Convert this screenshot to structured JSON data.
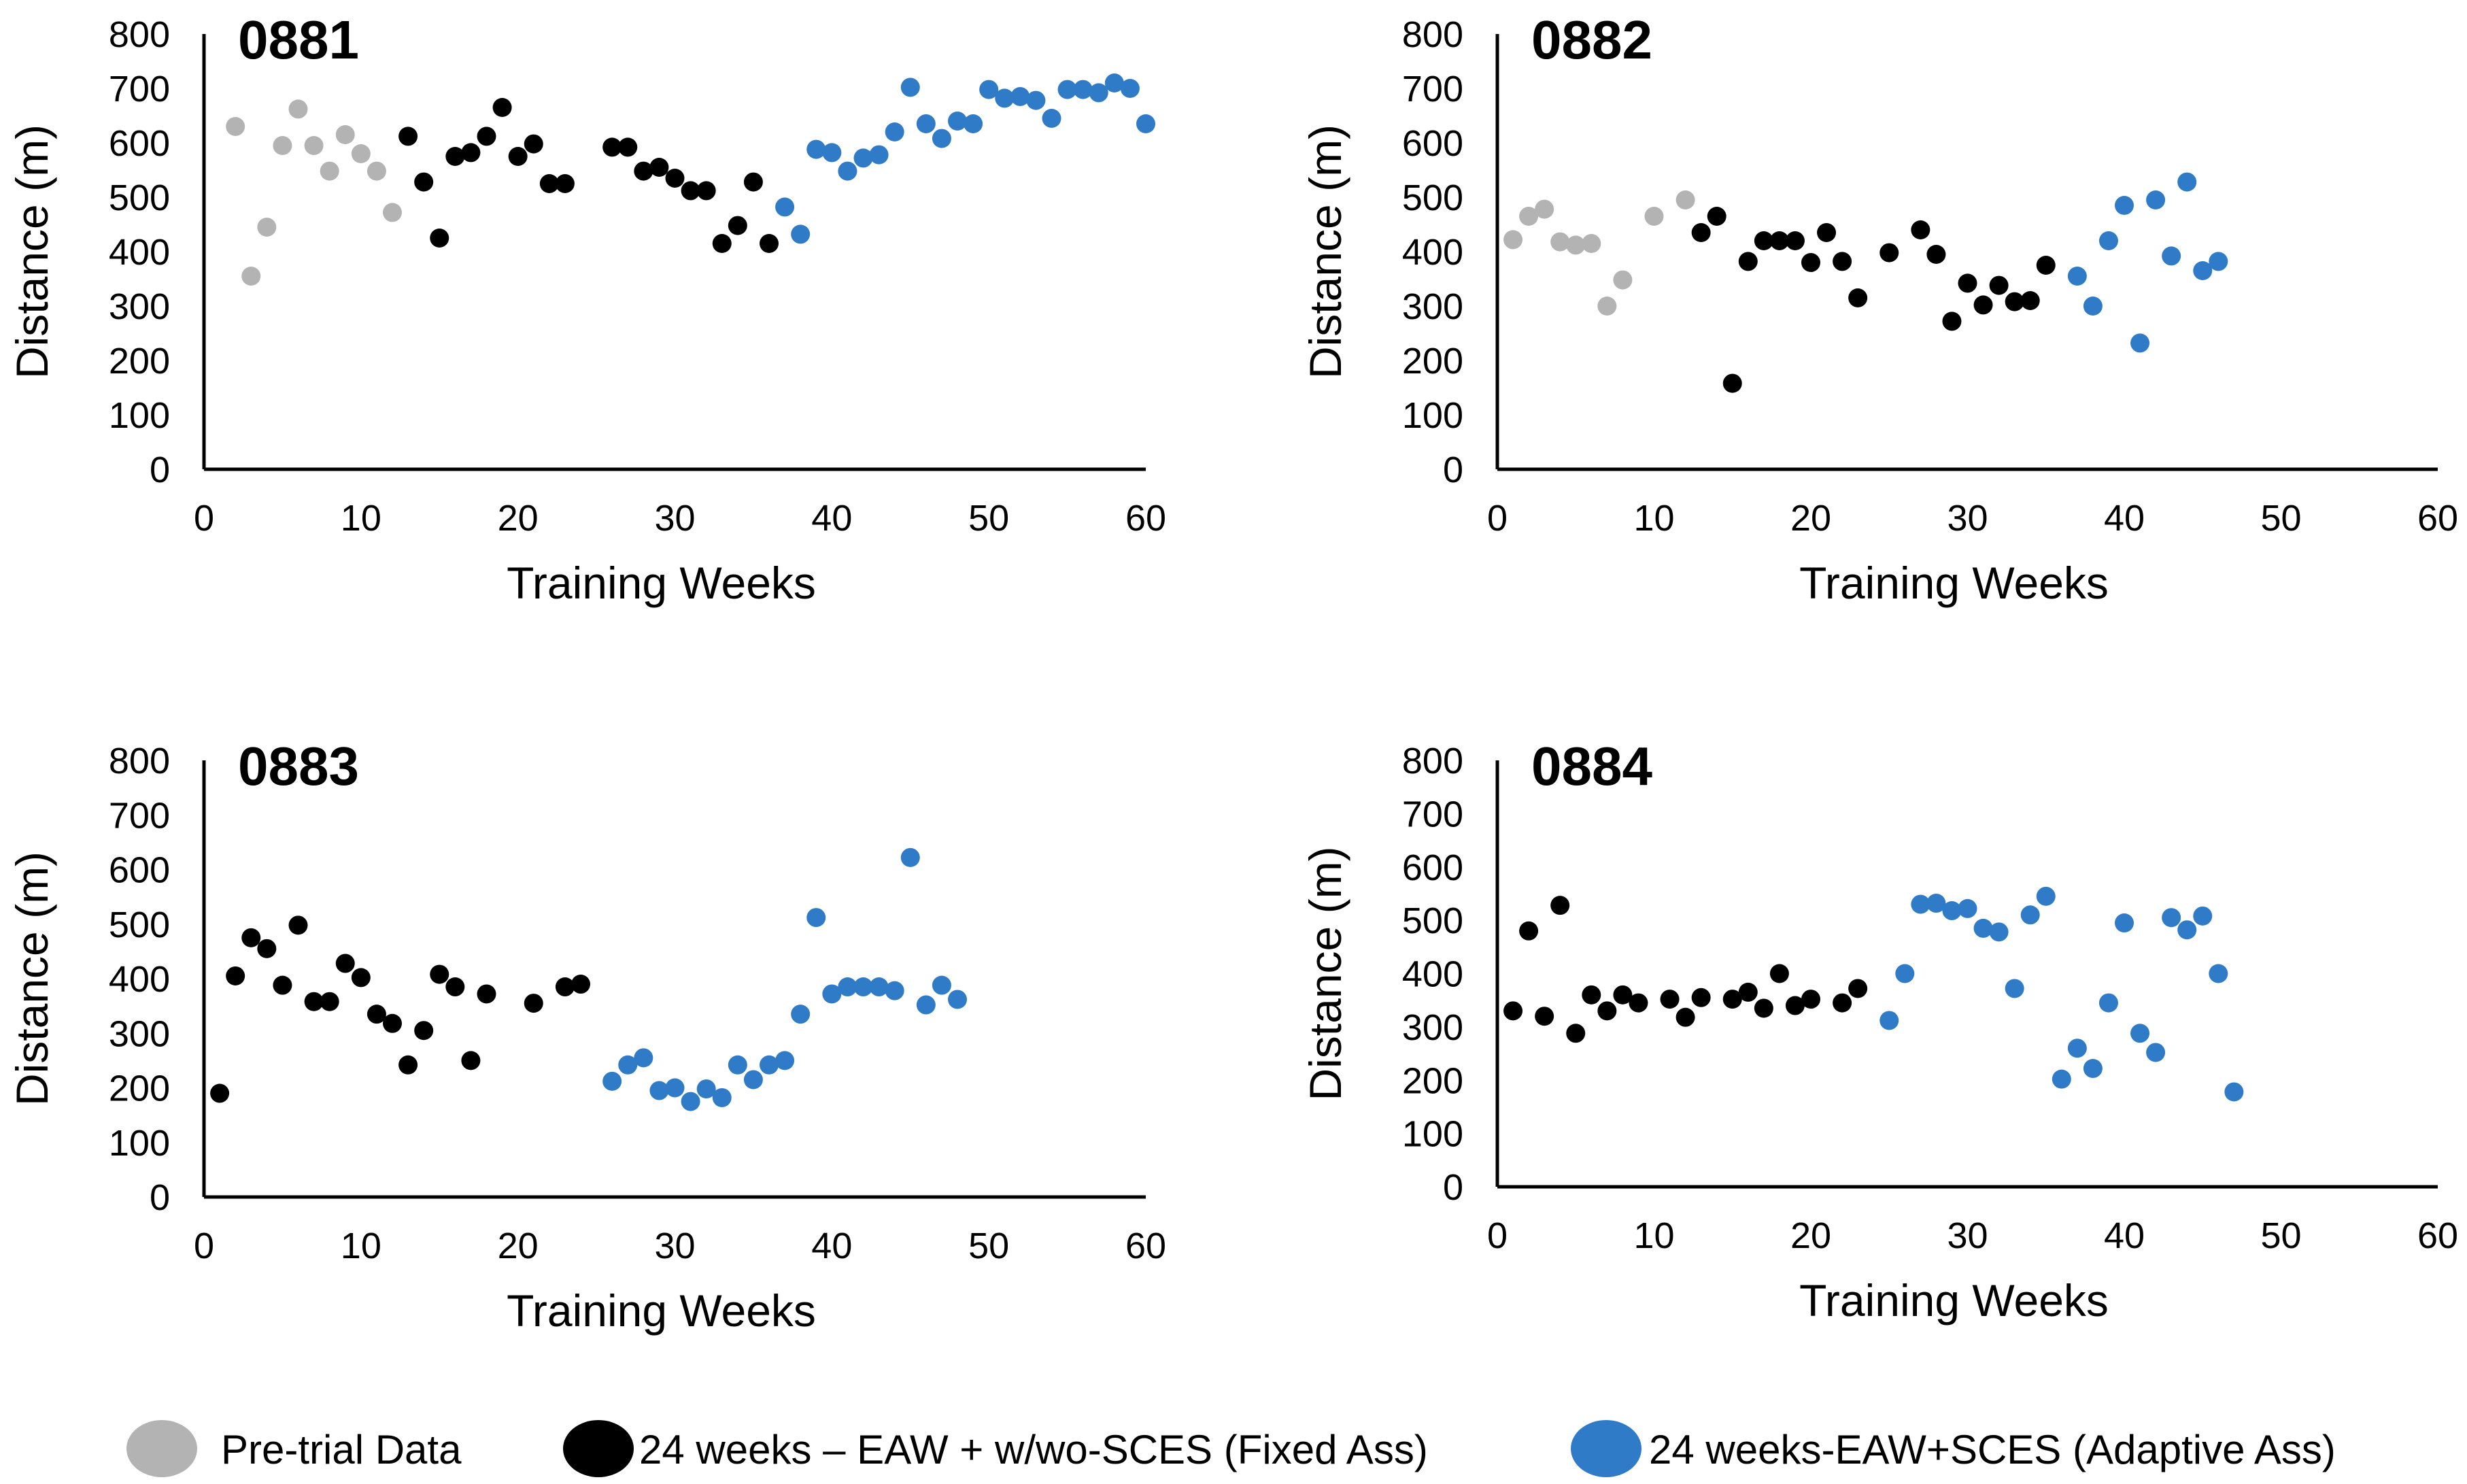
{
  "colors": {
    "pretrial": "#b3b3b3",
    "fixed": "#000000",
    "adaptive": "#2f7bc8"
  },
  "legend": [
    {
      "key": "pretrial",
      "label": "Pre-trial Data"
    },
    {
      "key": "fixed",
      "label": "24 weeks – EAW + w/wo-SCES (Fixed Ass)"
    },
    {
      "key": "adaptive",
      "label": "24 weeks-EAW+SCES (Adaptive Ass)"
    }
  ],
  "chart_data": [
    {
      "type": "scatter",
      "title": "0881",
      "xlabel": "Training Weeks",
      "ylabel": "Distance (m)",
      "xlim": [
        0,
        60
      ],
      "ylim": [
        0,
        800
      ],
      "xticks": [
        "0",
        "10",
        "20",
        "30",
        "40",
        "50",
        "60"
      ],
      "yticks": [
        "0",
        "100",
        "200",
        "300",
        "400",
        "500",
        "600",
        "700",
        "800"
      ],
      "series": [
        {
          "name": "Pre-trial Data",
          "key": "pretrial",
          "points": [
            [
              2,
              630
            ],
            [
              3,
              355
            ],
            [
              4,
              445
            ],
            [
              5,
              595
            ],
            [
              6,
              662
            ],
            [
              7,
              595
            ],
            [
              8,
              548
            ],
            [
              9,
              615
            ],
            [
              10,
              580
            ],
            [
              11,
              548
            ],
            [
              12,
              472
            ]
          ]
        },
        {
          "name": "24 weeks – EAW + w/wo-SCES (Fixed Ass)",
          "key": "fixed",
          "points": [
            [
              13,
              612
            ],
            [
              14,
              528
            ],
            [
              15,
              425
            ],
            [
              16,
              575
            ],
            [
              17,
              582
            ],
            [
              18,
              612
            ],
            [
              19,
              665
            ],
            [
              20,
              575
            ],
            [
              21,
              598
            ],
            [
              22,
              525
            ],
            [
              23,
              525
            ],
            [
              26,
              592
            ],
            [
              27,
              592
            ],
            [
              28,
              548
            ],
            [
              29,
              555
            ],
            [
              30,
              535
            ],
            [
              31,
              512
            ],
            [
              32,
              512
            ],
            [
              33,
              415
            ],
            [
              34,
              448
            ],
            [
              35,
              528
            ],
            [
              36,
              415
            ]
          ]
        },
        {
          "name": "24 weeks-EAW+SCES (Adaptive Ass)",
          "key": "adaptive",
          "points": [
            [
              37,
              482
            ],
            [
              38,
              432
            ],
            [
              39,
              588
            ],
            [
              40,
              582
            ],
            [
              41,
              548
            ],
            [
              42,
              572
            ],
            [
              43,
              578
            ],
            [
              44,
              620
            ],
            [
              45,
              702
            ],
            [
              46,
              635
            ],
            [
              47,
              608
            ],
            [
              48,
              640
            ],
            [
              49,
              635
            ],
            [
              50,
              698
            ],
            [
              51,
              682
            ],
            [
              52,
              685
            ],
            [
              53,
              678
            ],
            [
              54,
              645
            ],
            [
              55,
              698
            ],
            [
              56,
              698
            ],
            [
              57,
              692
            ],
            [
              58,
              710
            ],
            [
              59,
              700
            ],
            [
              60,
              635
            ]
          ]
        }
      ]
    },
    {
      "type": "scatter",
      "title": "0882",
      "xlabel": "Training Weeks",
      "ylabel": "Distance (m)",
      "xlim": [
        0,
        60
      ],
      "ylim": [
        0,
        800
      ],
      "xticks": [
        "0",
        "10",
        "20",
        "30",
        "40",
        "50",
        "60"
      ],
      "yticks": [
        "0",
        "100",
        "200",
        "300",
        "400",
        "500",
        "600",
        "700",
        "800"
      ],
      "series": [
        {
          "name": "Pre-trial Data",
          "key": "pretrial",
          "points": [
            [
              1,
              422
            ],
            [
              2,
              465
            ],
            [
              3,
              478
            ],
            [
              4,
              418
            ],
            [
              5,
              412
            ],
            [
              6,
              415
            ],
            [
              7,
              300
            ],
            [
              8,
              348
            ],
            [
              10,
              465
            ],
            [
              12,
              495
            ]
          ]
        },
        {
          "name": "24 weeks – EAW + w/wo-SCES (Fixed Ass)",
          "key": "fixed",
          "points": [
            [
              13,
              435
            ],
            [
              14,
              465
            ],
            [
              15,
              158
            ],
            [
              16,
              382
            ],
            [
              17,
              420
            ],
            [
              18,
              420
            ],
            [
              19,
              420
            ],
            [
              20,
              380
            ],
            [
              21,
              435
            ],
            [
              22,
              382
            ],
            [
              23,
              315
            ],
            [
              25,
              398
            ],
            [
              27,
              440
            ],
            [
              28,
              395
            ],
            [
              29,
              272
            ],
            [
              30,
              342
            ],
            [
              31,
              302
            ],
            [
              32,
              338
            ],
            [
              33,
              308
            ],
            [
              34,
              310
            ],
            [
              35,
              375
            ]
          ]
        },
        {
          "name": "24 weeks-EAW+SCES (Adaptive Ass)",
          "key": "adaptive",
          "points": [
            [
              37,
              355
            ],
            [
              38,
              300
            ],
            [
              39,
              420
            ],
            [
              40,
              485
            ],
            [
              41,
              232
            ],
            [
              42,
              495
            ],
            [
              43,
              392
            ],
            [
              44,
              528
            ],
            [
              45,
              365
            ],
            [
              46,
              382
            ]
          ]
        }
      ]
    },
    {
      "type": "scatter",
      "title": "0883",
      "xlabel": "Training Weeks",
      "ylabel": "Distance (m)",
      "xlim": [
        0,
        60
      ],
      "ylim": [
        0,
        800
      ],
      "xticks": [
        "0",
        "10",
        "20",
        "30",
        "40",
        "50",
        "60"
      ],
      "yticks": [
        "0",
        "100",
        "200",
        "300",
        "400",
        "500",
        "600",
        "700",
        "800"
      ],
      "series": [
        {
          "name": "24 weeks – EAW + w/wo-SCES (Fixed Ass)",
          "key": "fixed",
          "points": [
            [
              1,
              190
            ],
            [
              2,
              405
            ],
            [
              3,
              475
            ],
            [
              4,
              455
            ],
            [
              5,
              388
            ],
            [
              6,
              498
            ],
            [
              7,
              358
            ],
            [
              8,
              358
            ],
            [
              9,
              428
            ],
            [
              10,
              402
            ],
            [
              11,
              335
            ],
            [
              12,
              318
            ],
            [
              13,
              242
            ],
            [
              14,
              305
            ],
            [
              15,
              408
            ],
            [
              16,
              385
            ],
            [
              17,
              250
            ],
            [
              18,
              372
            ],
            [
              21,
              355
            ],
            [
              23,
              385
            ],
            [
              24,
              390
            ]
          ]
        },
        {
          "name": "24 weeks-EAW+SCES (Adaptive Ass)",
          "key": "adaptive",
          "points": [
            [
              26,
              212
            ],
            [
              27,
              242
            ],
            [
              28,
              255
            ],
            [
              29,
              195
            ],
            [
              30,
              200
            ],
            [
              31,
              175
            ],
            [
              32,
              198
            ],
            [
              33,
              182
            ],
            [
              34,
              242
            ],
            [
              35,
              215
            ],
            [
              36,
              242
            ],
            [
              37,
              250
            ],
            [
              38,
              335
            ],
            [
              39,
              512
            ],
            [
              40,
              372
            ],
            [
              41,
              385
            ],
            [
              42,
              385
            ],
            [
              43,
              385
            ],
            [
              44,
              378
            ],
            [
              45,
              622
            ],
            [
              46,
              352
            ],
            [
              47,
              388
            ],
            [
              48,
              362
            ]
          ]
        }
      ]
    },
    {
      "type": "scatter",
      "title": "0884",
      "xlabel": "Training Weeks",
      "ylabel": "Distance (m)",
      "xlim": [
        0,
        60
      ],
      "ylim": [
        0,
        800
      ],
      "xticks": [
        "0",
        "10",
        "20",
        "30",
        "40",
        "50",
        "60"
      ],
      "yticks": [
        "0",
        "100",
        "200",
        "300",
        "400",
        "500",
        "600",
        "700",
        "800"
      ],
      "series": [
        {
          "name": "24 weeks – EAW + w/wo-SCES (Fixed Ass)",
          "key": "fixed",
          "points": [
            [
              1,
              330
            ],
            [
              2,
              480
            ],
            [
              3,
              320
            ],
            [
              4,
              528
            ],
            [
              5,
              288
            ],
            [
              6,
              360
            ],
            [
              7,
              330
            ],
            [
              8,
              360
            ],
            [
              9,
              345
            ],
            [
              11,
              352
            ],
            [
              12,
              318
            ],
            [
              13,
              355
            ],
            [
              15,
              352
            ],
            [
              16,
              365
            ],
            [
              17,
              335
            ],
            [
              18,
              400
            ],
            [
              19,
              340
            ],
            [
              20,
              352
            ],
            [
              22,
              345
            ],
            [
              23,
              372
            ]
          ]
        },
        {
          "name": "24 weeks-EAW+SCES (Adaptive Ass)",
          "key": "adaptive",
          "points": [
            [
              25,
              312
            ],
            [
              26,
              400
            ],
            [
              27,
              530
            ],
            [
              28,
              532
            ],
            [
              29,
              518
            ],
            [
              30,
              522
            ],
            [
              31,
              485
            ],
            [
              32,
              478
            ],
            [
              33,
              372
            ],
            [
              34,
              510
            ],
            [
              35,
              545
            ],
            [
              36,
              202
            ],
            [
              37,
              260
            ],
            [
              38,
              222
            ],
            [
              39,
              345
            ],
            [
              40,
              495
            ],
            [
              41,
              288
            ],
            [
              42,
              252
            ],
            [
              43,
              505
            ],
            [
              44,
              482
            ],
            [
              45,
              508
            ],
            [
              46,
              400
            ],
            [
              47,
              178
            ]
          ]
        }
      ]
    }
  ]
}
